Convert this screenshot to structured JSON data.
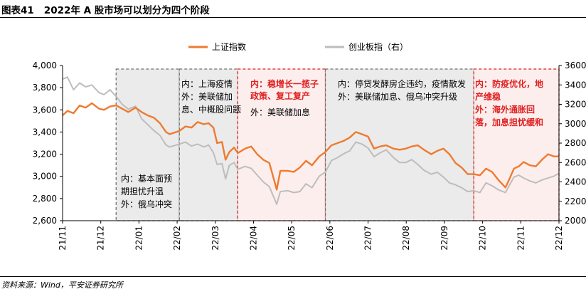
{
  "figure": {
    "label": "图表41",
    "title": "2022年 A 股市场可以划分为四个阶段",
    "source": "资料来源：Wind，平安证券研究所"
  },
  "chart_data": {
    "type": "line",
    "x_ticks": [
      "21/11",
      "21/12",
      "22/01",
      "22/02",
      "22/03",
      "22/04",
      "22/05",
      "22/06",
      "22/07",
      "22/08",
      "22/09",
      "22/10",
      "22/11",
      "22/12"
    ],
    "x_range": [
      "2021-11-01",
      "2022-12-14"
    ],
    "y_left": {
      "ticks": [
        "4,000",
        "3,800",
        "3,600",
        "3,400",
        "3,200",
        "3,000",
        "2,800",
        "2,600"
      ],
      "ylim": [
        2600,
        4000
      ]
    },
    "y_right": {
      "ticks": [
        "3600",
        "3400",
        "3200",
        "3000",
        "2800",
        "2600",
        "2400",
        "2200",
        "2000"
      ],
      "ylim": [
        2000,
        3600
      ]
    },
    "series": [
      {
        "name": "上证指数",
        "axis": "left",
        "color": "#ee7b30",
        "points": [
          [
            "2021-11-01",
            3550
          ],
          [
            "2021-11-05",
            3590
          ],
          [
            "2021-11-10",
            3570
          ],
          [
            "2021-11-15",
            3640
          ],
          [
            "2021-11-20",
            3620
          ],
          [
            "2021-11-25",
            3660
          ],
          [
            "2021-12-01",
            3610
          ],
          [
            "2021-12-05",
            3600
          ],
          [
            "2021-12-10",
            3630
          ],
          [
            "2021-12-15",
            3640
          ],
          [
            "2021-12-20",
            3610
          ],
          [
            "2021-12-25",
            3580
          ],
          [
            "2021-12-31",
            3620
          ],
          [
            "2022-01-05",
            3580
          ],
          [
            "2022-01-10",
            3550
          ],
          [
            "2022-01-15",
            3530
          ],
          [
            "2022-01-20",
            3480
          ],
          [
            "2022-01-25",
            3400
          ],
          [
            "2022-01-28",
            3380
          ],
          [
            "2022-02-05",
            3410
          ],
          [
            "2022-02-10",
            3450
          ],
          [
            "2022-02-15",
            3440
          ],
          [
            "2022-02-20",
            3490
          ],
          [
            "2022-02-25",
            3470
          ],
          [
            "2022-03-01",
            3480
          ],
          [
            "2022-03-05",
            3440
          ],
          [
            "2022-03-08",
            3300
          ],
          [
            "2022-03-12",
            3310
          ],
          [
            "2022-03-15",
            3150
          ],
          [
            "2022-03-18",
            3220
          ],
          [
            "2022-03-22",
            3260
          ],
          [
            "2022-03-25",
            3210
          ],
          [
            "2022-03-31",
            3250
          ],
          [
            "2022-04-05",
            3270
          ],
          [
            "2022-04-10",
            3200
          ],
          [
            "2022-04-15",
            3150
          ],
          [
            "2022-04-20",
            3120
          ],
          [
            "2022-04-26",
            2880
          ],
          [
            "2022-04-29",
            3050
          ],
          [
            "2022-05-05",
            3050
          ],
          [
            "2022-05-10",
            3040
          ],
          [
            "2022-05-15",
            3080
          ],
          [
            "2022-05-20",
            3140
          ],
          [
            "2022-05-25",
            3100
          ],
          [
            "2022-05-31",
            3180
          ],
          [
            "2022-06-05",
            3220
          ],
          [
            "2022-06-10",
            3280
          ],
          [
            "2022-06-15",
            3300
          ],
          [
            "2022-06-20",
            3320
          ],
          [
            "2022-06-25",
            3350
          ],
          [
            "2022-06-30",
            3400
          ],
          [
            "2022-07-05",
            3380
          ],
          [
            "2022-07-10",
            3360
          ],
          [
            "2022-07-15",
            3250
          ],
          [
            "2022-07-20",
            3270
          ],
          [
            "2022-07-25",
            3280
          ],
          [
            "2022-07-31",
            3250
          ],
          [
            "2022-08-05",
            3240
          ],
          [
            "2022-08-10",
            3250
          ],
          [
            "2022-08-15",
            3270
          ],
          [
            "2022-08-20",
            3280
          ],
          [
            "2022-08-25",
            3240
          ],
          [
            "2022-08-31",
            3200
          ],
          [
            "2022-09-05",
            3230
          ],
          [
            "2022-09-10",
            3250
          ],
          [
            "2022-09-15",
            3200
          ],
          [
            "2022-09-20",
            3120
          ],
          [
            "2022-09-25",
            3080
          ],
          [
            "2022-09-30",
            3020
          ],
          [
            "2022-10-05",
            3020
          ],
          [
            "2022-10-10",
            3010
          ],
          [
            "2022-10-15",
            3070
          ],
          [
            "2022-10-20",
            3040
          ],
          [
            "2022-10-25",
            2970
          ],
          [
            "2022-10-31",
            2900
          ],
          [
            "2022-11-03",
            2970
          ],
          [
            "2022-11-07",
            3070
          ],
          [
            "2022-11-11",
            3090
          ],
          [
            "2022-11-15",
            3130
          ],
          [
            "2022-11-20",
            3100
          ],
          [
            "2022-11-25",
            3090
          ],
          [
            "2022-11-30",
            3150
          ],
          [
            "2022-12-05",
            3200
          ],
          [
            "2022-12-10",
            3180
          ],
          [
            "2022-12-14",
            3180
          ]
        ]
      },
      {
        "name": "创业板指（右）",
        "axis": "right",
        "color": "#bdbdbd",
        "points": [
          [
            "2021-11-01",
            3460
          ],
          [
            "2021-11-05",
            3480
          ],
          [
            "2021-11-10",
            3350
          ],
          [
            "2021-11-15",
            3420
          ],
          [
            "2021-11-20",
            3380
          ],
          [
            "2021-11-25",
            3400
          ],
          [
            "2021-12-01",
            3320
          ],
          [
            "2021-12-05",
            3300
          ],
          [
            "2021-12-10",
            3350
          ],
          [
            "2021-12-15",
            3280
          ],
          [
            "2021-12-20",
            3200
          ],
          [
            "2021-12-25",
            3150
          ],
          [
            "2021-12-31",
            3180
          ],
          [
            "2022-01-05",
            3050
          ],
          [
            "2022-01-10",
            2990
          ],
          [
            "2022-01-15",
            2930
          ],
          [
            "2022-01-20",
            2880
          ],
          [
            "2022-01-25",
            2780
          ],
          [
            "2022-01-28",
            2760
          ],
          [
            "2022-02-05",
            2790
          ],
          [
            "2022-02-10",
            2810
          ],
          [
            "2022-02-15",
            2770
          ],
          [
            "2022-02-20",
            2790
          ],
          [
            "2022-02-25",
            2760
          ],
          [
            "2022-03-01",
            2780
          ],
          [
            "2022-03-05",
            2700
          ],
          [
            "2022-03-08",
            2580
          ],
          [
            "2022-03-12",
            2590
          ],
          [
            "2022-03-15",
            2430
          ],
          [
            "2022-03-18",
            2570
          ],
          [
            "2022-03-22",
            2600
          ],
          [
            "2022-03-25",
            2530
          ],
          [
            "2022-03-31",
            2560
          ],
          [
            "2022-04-05",
            2540
          ],
          [
            "2022-04-10",
            2470
          ],
          [
            "2022-04-15",
            2400
          ],
          [
            "2022-04-20",
            2350
          ],
          [
            "2022-04-26",
            2170
          ],
          [
            "2022-04-29",
            2300
          ],
          [
            "2022-05-05",
            2310
          ],
          [
            "2022-05-10",
            2290
          ],
          [
            "2022-05-15",
            2300
          ],
          [
            "2022-05-20",
            2380
          ],
          [
            "2022-05-25",
            2340
          ],
          [
            "2022-05-31",
            2460
          ],
          [
            "2022-06-05",
            2500
          ],
          [
            "2022-06-10",
            2620
          ],
          [
            "2022-06-15",
            2650
          ],
          [
            "2022-06-20",
            2690
          ],
          [
            "2022-06-25",
            2720
          ],
          [
            "2022-06-30",
            2810
          ],
          [
            "2022-07-05",
            2790
          ],
          [
            "2022-07-10",
            2750
          ],
          [
            "2022-07-15",
            2660
          ],
          [
            "2022-07-20",
            2700
          ],
          [
            "2022-07-25",
            2730
          ],
          [
            "2022-07-31",
            2650
          ],
          [
            "2022-08-05",
            2600
          ],
          [
            "2022-08-10",
            2600
          ],
          [
            "2022-08-15",
            2630
          ],
          [
            "2022-08-20",
            2580
          ],
          [
            "2022-08-25",
            2520
          ],
          [
            "2022-08-31",
            2480
          ],
          [
            "2022-09-05",
            2500
          ],
          [
            "2022-09-10",
            2450
          ],
          [
            "2022-09-15",
            2390
          ],
          [
            "2022-09-20",
            2370
          ],
          [
            "2022-09-25",
            2340
          ],
          [
            "2022-09-30",
            2300
          ],
          [
            "2022-10-05",
            2310
          ],
          [
            "2022-10-10",
            2290
          ],
          [
            "2022-10-15",
            2390
          ],
          [
            "2022-10-20",
            2360
          ],
          [
            "2022-10-25",
            2320
          ],
          [
            "2022-10-31",
            2290
          ],
          [
            "2022-11-03",
            2360
          ],
          [
            "2022-11-07",
            2450
          ],
          [
            "2022-11-11",
            2470
          ],
          [
            "2022-11-15",
            2440
          ],
          [
            "2022-11-20",
            2410
          ],
          [
            "2022-11-25",
            2390
          ],
          [
            "2022-11-30",
            2420
          ],
          [
            "2022-12-05",
            2440
          ],
          [
            "2022-12-10",
            2460
          ],
          [
            "2022-12-14",
            2490
          ]
        ]
      }
    ],
    "legend": {
      "placement": "top-center",
      "entries": [
        "上证指数",
        "创业板指（右）"
      ]
    },
    "grid": false,
    "phases": [
      {
        "start": "2021-12-15",
        "end": "2022-02-05",
        "style": "gray",
        "text_color": "#000000",
        "lines": [
          "内：基本面预",
          "期担忧升温",
          "外：俄乌冲突"
        ]
      },
      {
        "start": "2022-02-05",
        "end": "2022-03-25",
        "style": "gray",
        "text_color": "#000000",
        "lines": [
          "内：上海疫情",
          "外：美联储加",
          "息、中概股问题"
        ]
      },
      {
        "start": "2022-03-25",
        "end": "2022-06-05",
        "style": "red",
        "text_color": "#e02020",
        "lines": [
          "内：稳增长一揽子",
          "政策、复工复产"
        ],
        "extra_line": "外：美联储加息"
      },
      {
        "start": "2022-06-05",
        "end": "2022-10-05",
        "style": "gray",
        "text_color": "#000000",
        "lines": [
          "内：停贷发酵房企违约，疫情散发",
          "外：美联储加息、俄乌冲突升级"
        ]
      },
      {
        "start": "2022-10-05",
        "end": "2022-12-14",
        "style": "red",
        "text_color": "#e02020",
        "lines": [
          "内：防疫优化，地",
          "产维稳",
          "外：海外通胀回",
          "落，加息担忧缓和"
        ]
      }
    ]
  }
}
